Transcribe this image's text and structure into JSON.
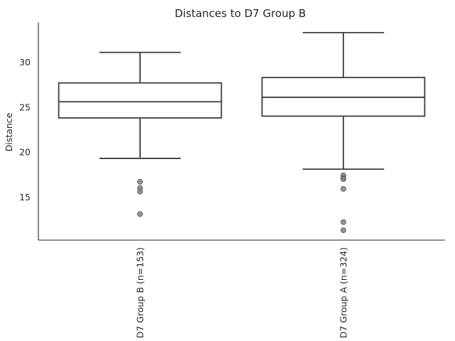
{
  "chart_data": {
    "type": "box",
    "title": "Distances to D7 Group B",
    "xlabel": "",
    "ylabel": "Distance",
    "ylim": [
      10.2,
      34.4
    ],
    "yticks": [
      15,
      20,
      25,
      30
    ],
    "grid": false,
    "categories": [
      "D7 Group B (n=153)",
      "D7 Group A (n=324)"
    ],
    "boxes": [
      {
        "category": "D7 Group B (n=153)",
        "whisker_low": 19.3,
        "q1": 23.8,
        "median": 25.6,
        "q3": 27.7,
        "whisker_high": 31.1,
        "outliers": [
          16.7,
          16.0,
          15.6,
          13.1
        ]
      },
      {
        "category": "D7 Group A (n=324)",
        "whisker_low": 18.1,
        "q1": 24.0,
        "median": 26.1,
        "q3": 28.3,
        "whisker_high": 33.3,
        "outliers": [
          17.4,
          17.1,
          17.0,
          15.9,
          12.2,
          11.3
        ]
      }
    ],
    "colors": {
      "box_line": "#3d3d3d",
      "outlier_fill": "#7f7f7f",
      "axis": "#262626"
    }
  }
}
